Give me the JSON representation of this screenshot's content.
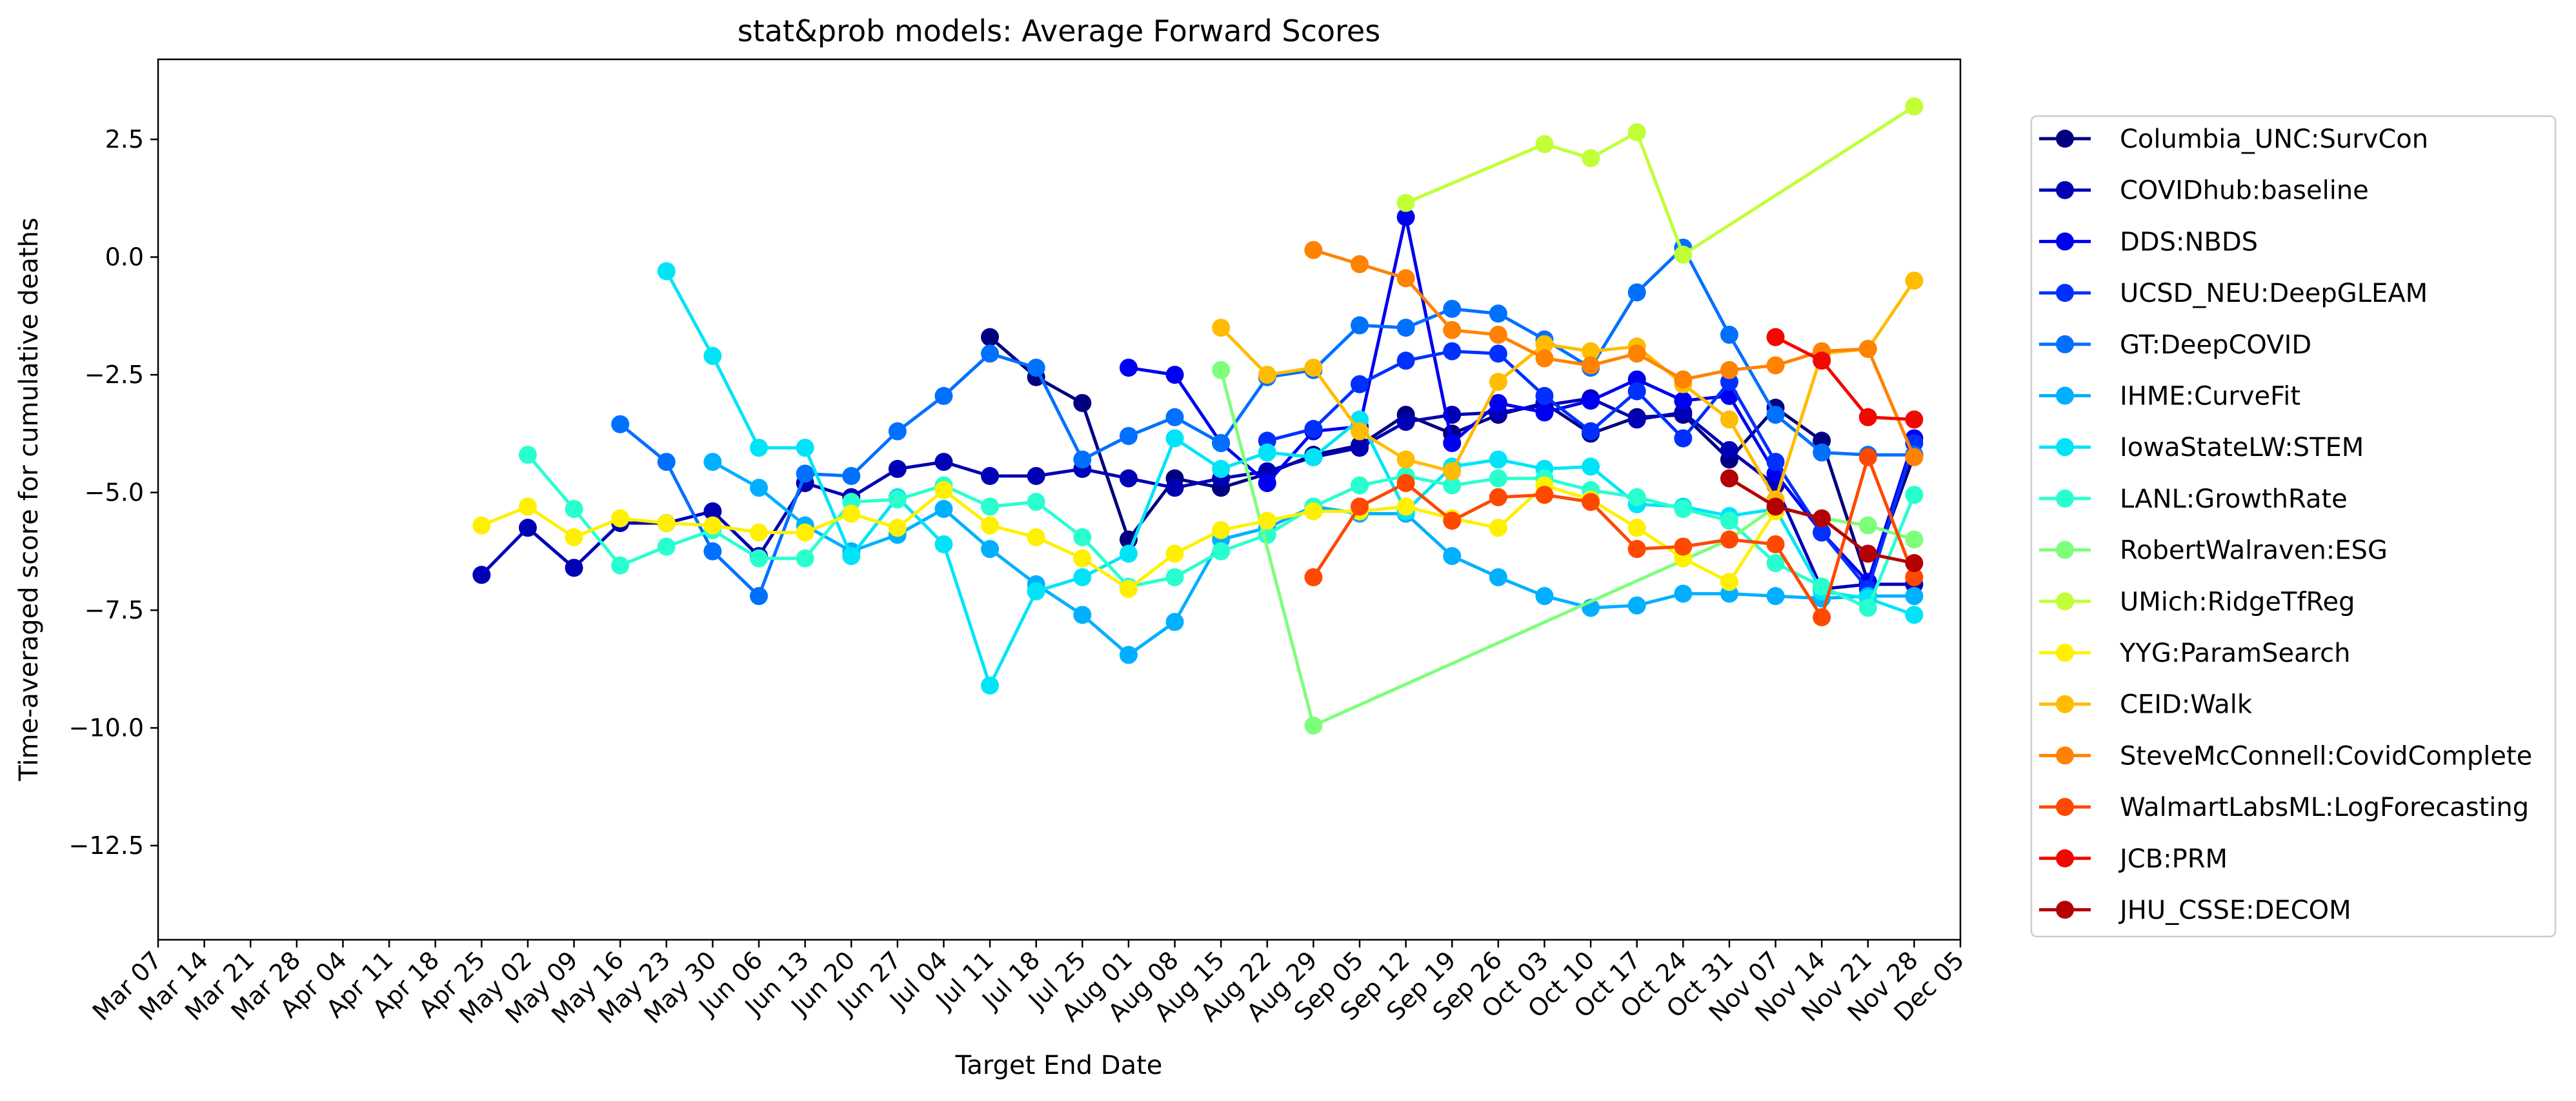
{
  "chart_data": {
    "type": "line",
    "title": "stat&prob models: Average Forward Scores",
    "xlabel": "Target End Date",
    "ylabel": "Time-averaged score for cumulative deaths",
    "x_ticks": [
      "Mar 07",
      "Mar 14",
      "Mar 21",
      "Mar 28",
      "Apr 04",
      "Apr 11",
      "Apr 18",
      "Apr 25",
      "May 02",
      "May 09",
      "May 16",
      "May 23",
      "May 30",
      "Jun 06",
      "Jun 13",
      "Jun 20",
      "Jun 27",
      "Jul 04",
      "Jul 11",
      "Jul 18",
      "Jul 25",
      "Aug 01",
      "Aug 08",
      "Aug 15",
      "Aug 22",
      "Aug 29",
      "Sep 05",
      "Sep 12",
      "Sep 19",
      "Sep 26",
      "Oct 03",
      "Oct 10",
      "Oct 17",
      "Oct 24",
      "Oct 31",
      "Nov 07",
      "Nov 14",
      "Nov 21",
      "Nov 28",
      "Dec 05"
    ],
    "y_ticks": [
      2.5,
      0.0,
      -2.5,
      -5.0,
      -7.5,
      -10.0,
      -12.5
    ],
    "y_tick_labels": [
      "2.5",
      "0.0",
      "−2.5",
      "−5.0",
      "−7.5",
      "−10.0",
      "−12.5"
    ],
    "xlim": [
      0,
      39
    ],
    "ylim": [
      -14.5,
      4.2
    ],
    "grid": false,
    "legend_position": "outside-right",
    "series": [
      {
        "name": "Columbia_UNC:SurvCon",
        "color": "#000080",
        "x": [
          18,
          19,
          20,
          21,
          22,
          23,
          24,
          25,
          26,
          27,
          28,
          29,
          30,
          31,
          32,
          33,
          34,
          35,
          36,
          37,
          38
        ],
        "values": [
          -1.7,
          -2.55,
          -3.1,
          -6.0,
          -4.7,
          -4.9,
          -4.6,
          -4.2,
          -4.0,
          -3.35,
          -3.75,
          -3.35,
          -3.1,
          -3.75,
          -3.4,
          -3.35,
          -4.3,
          -3.2,
          -3.9,
          -6.9,
          -4.2
        ]
      },
      {
        "name": "COVIDhub:baseline",
        "color": "#0000B4",
        "x": [
          7,
          8,
          9,
          10,
          11,
          12,
          13,
          14,
          15,
          16,
          17,
          18,
          19,
          20,
          21,
          22,
          23,
          24,
          25,
          26,
          27,
          28,
          29,
          30,
          31,
          32,
          33,
          34,
          35,
          36,
          37,
          38
        ],
        "values": [
          -6.75,
          -5.75,
          -6.6,
          -5.65,
          -5.65,
          -5.4,
          -6.35,
          -4.8,
          -5.1,
          -4.5,
          -4.35,
          -4.65,
          -4.65,
          -4.5,
          -4.7,
          -4.9,
          -4.7,
          -4.55,
          -4.25,
          -4.05,
          -3.5,
          -3.35,
          -3.3,
          -3.15,
          -3.0,
          -3.45,
          -3.3,
          -4.1,
          -4.85,
          -7.05,
          -6.95,
          -6.95
        ]
      },
      {
        "name": "DDS:NBDS",
        "color": "#0000F0",
        "x": [
          21,
          22,
          23,
          24,
          25,
          26,
          27,
          28,
          29,
          30,
          31,
          32,
          33,
          34,
          35,
          36,
          37,
          38
        ],
        "values": [
          -2.35,
          -2.5,
          -3.95,
          -4.8,
          -3.7,
          -3.6,
          0.85,
          -3.95,
          -3.1,
          -3.3,
          -3.05,
          -2.6,
          -3.05,
          -2.95,
          -4.6,
          -5.85,
          -6.9,
          -3.85
        ]
      },
      {
        "name": "UCSD_NEU:DeepGLEAM",
        "color": "#0030FF",
        "x": [
          24,
          25,
          26,
          27,
          28,
          29,
          30,
          31,
          32,
          33,
          34,
          35,
          36,
          37,
          38
        ],
        "values": [
          -3.9,
          -3.65,
          -2.7,
          -2.2,
          -2.0,
          -2.05,
          -2.95,
          -3.7,
          -2.85,
          -3.85,
          -2.65,
          -4.35,
          -5.85,
          -7.05,
          -3.95
        ]
      },
      {
        "name": "GT:DeepCOVID",
        "color": "#0070FF",
        "x": [
          10,
          11,
          12,
          13,
          14,
          15,
          16,
          17,
          18,
          19,
          20,
          21,
          22,
          23,
          24,
          25,
          26,
          27,
          28,
          29,
          30,
          31,
          32,
          33,
          34,
          35,
          36,
          37,
          38
        ],
        "values": [
          -3.55,
          -4.35,
          -6.25,
          -7.2,
          -4.6,
          -4.65,
          -3.7,
          -2.95,
          -2.05,
          -2.35,
          -4.3,
          -3.8,
          -3.4,
          -3.95,
          -2.55,
          -2.4,
          -1.45,
          -1.5,
          -1.1,
          -1.2,
          -1.75,
          -2.35,
          -0.75,
          0.2,
          -1.65,
          -3.35,
          -4.15,
          -4.2,
          -4.2
        ]
      },
      {
        "name": "IHME:CurveFit",
        "color": "#00B0FF",
        "x": [
          12,
          13,
          14,
          15,
          16,
          17,
          18,
          19,
          20,
          21,
          22,
          23,
          24,
          25,
          26,
          27,
          28,
          29,
          30,
          31,
          32,
          33,
          34,
          35,
          36,
          37,
          38
        ],
        "values": [
          -4.35,
          -4.9,
          -5.7,
          -6.25,
          -5.9,
          -5.35,
          -6.2,
          -6.95,
          -7.6,
          -8.45,
          -7.75,
          -6.0,
          -5.75,
          -5.3,
          -5.45,
          -5.45,
          -6.35,
          -6.8,
          -7.2,
          -7.45,
          -7.4,
          -7.15,
          -7.15,
          -7.2,
          -7.25,
          -7.2,
          -7.2
        ]
      },
      {
        "name": "IowaStateLW:STEM",
        "color": "#00E4F8",
        "x": [
          11,
          12,
          13,
          14,
          15,
          16,
          17,
          18,
          19,
          20,
          21,
          22,
          23,
          24,
          25,
          26,
          27,
          28,
          29,
          30,
          31,
          32,
          33,
          34,
          35,
          36,
          37,
          38
        ],
        "values": [
          -0.3,
          -2.1,
          -4.05,
          -4.05,
          -6.35,
          -5.1,
          -6.1,
          -9.1,
          -7.1,
          -6.8,
          -6.3,
          -3.85,
          -4.5,
          -4.15,
          -4.25,
          -3.45,
          -5.4,
          -4.45,
          -4.3,
          -4.5,
          -4.45,
          -5.25,
          -5.3,
          -5.5,
          -5.35,
          -7.1,
          -7.25,
          -7.6
        ]
      },
      {
        "name": "LANL:GrowthRate",
        "color": "#29FFCE",
        "x": [
          8,
          9,
          10,
          11,
          12,
          13,
          14,
          15,
          16,
          17,
          18,
          19,
          20,
          21,
          22,
          23,
          24,
          25,
          26,
          27,
          28,
          29,
          30,
          31,
          32,
          33,
          34,
          35,
          36,
          37,
          38
        ],
        "values": [
          -4.2,
          -5.35,
          -6.55,
          -6.15,
          -5.8,
          -6.4,
          -6.4,
          -5.2,
          -5.15,
          -4.85,
          -5.3,
          -5.2,
          -5.95,
          -7.0,
          -6.8,
          -6.25,
          -5.9,
          -5.3,
          -4.85,
          -4.65,
          -4.85,
          -4.7,
          -4.7,
          -4.95,
          -5.1,
          -5.35,
          -5.6,
          -6.5,
          -7.0,
          -7.45,
          -5.05
        ]
      },
      {
        "name": "RobertWalraven:ESG",
        "color": "#7DFF7A",
        "x": [
          23,
          25,
          34,
          35,
          36,
          37,
          38
        ],
        "values": [
          -2.4,
          -9.95,
          -6.0,
          -5.3,
          -5.55,
          -5.7,
          -6.0
        ]
      },
      {
        "name": "UMich:RidgeTfReg",
        "color": "#C1FF36",
        "x": [
          27,
          30,
          31,
          32,
          33,
          38
        ],
        "values": [
          1.15,
          2.4,
          2.1,
          2.65,
          0.05,
          3.2
        ]
      },
      {
        "name": "YYG:ParamSearch",
        "color": "#FFF000",
        "x": [
          7,
          8,
          9,
          10,
          11,
          12,
          13,
          14,
          15,
          16,
          17,
          18,
          19,
          20,
          21,
          22,
          23,
          24,
          25,
          26,
          27,
          28,
          29,
          30,
          31,
          32,
          33,
          34,
          35
        ],
        "values": [
          -5.7,
          -5.3,
          -5.95,
          -5.55,
          -5.65,
          -5.7,
          -5.85,
          -5.85,
          -5.45,
          -5.75,
          -4.95,
          -5.7,
          -5.95,
          -6.4,
          -7.05,
          -6.3,
          -5.8,
          -5.6,
          -5.4,
          -5.4,
          -5.3,
          -5.55,
          -5.75,
          -4.85,
          -5.15,
          -5.75,
          -6.4,
          -6.9,
          -5.4
        ]
      },
      {
        "name": "CEID:Walk",
        "color": "#FFBC00",
        "x": [
          23,
          24,
          25,
          26,
          27,
          28,
          29,
          30,
          31,
          32,
          33,
          34,
          35,
          36,
          37,
          38
        ],
        "values": [
          -1.5,
          -2.5,
          -2.35,
          -3.7,
          -4.3,
          -4.55,
          -2.65,
          -1.85,
          -2.0,
          -1.9,
          -2.7,
          -3.45,
          -5.15,
          -2.05,
          -1.95,
          -0.5
        ]
      },
      {
        "name": "SteveMcConnell:CovidComplete",
        "color": "#FF8200",
        "x": [
          25,
          26,
          27,
          28,
          29,
          30,
          31,
          32,
          33,
          34,
          35,
          36,
          37,
          38
        ],
        "values": [
          0.15,
          -0.15,
          -0.45,
          -1.55,
          -1.65,
          -2.15,
          -2.3,
          -2.05,
          -2.6,
          -2.4,
          -2.3,
          -2.0,
          -1.95,
          -4.25
        ]
      },
      {
        "name": "WalmartLabsML:LogForecasting",
        "color": "#FF4800",
        "x": [
          25,
          26,
          27,
          28,
          29,
          30,
          31,
          32,
          33,
          34,
          35,
          36,
          37,
          38
        ],
        "values": [
          -6.8,
          -5.3,
          -4.8,
          -5.6,
          -5.1,
          -5.05,
          -5.2,
          -6.2,
          -6.15,
          -6.0,
          -6.1,
          -7.65,
          -4.25,
          -6.8
        ]
      },
      {
        "name": "JCB:PRM",
        "color": "#F10800",
        "x": [
          35,
          36,
          37,
          38
        ],
        "values": [
          -1.7,
          -2.2,
          -3.4,
          -3.45
        ]
      },
      {
        "name": "JHU_CSSE:DECOM",
        "color": "#B40000",
        "x": [
          34,
          35,
          36,
          37,
          38
        ],
        "values": [
          -4.7,
          -5.3,
          -5.55,
          -6.3,
          -6.5
        ]
      }
    ]
  }
}
